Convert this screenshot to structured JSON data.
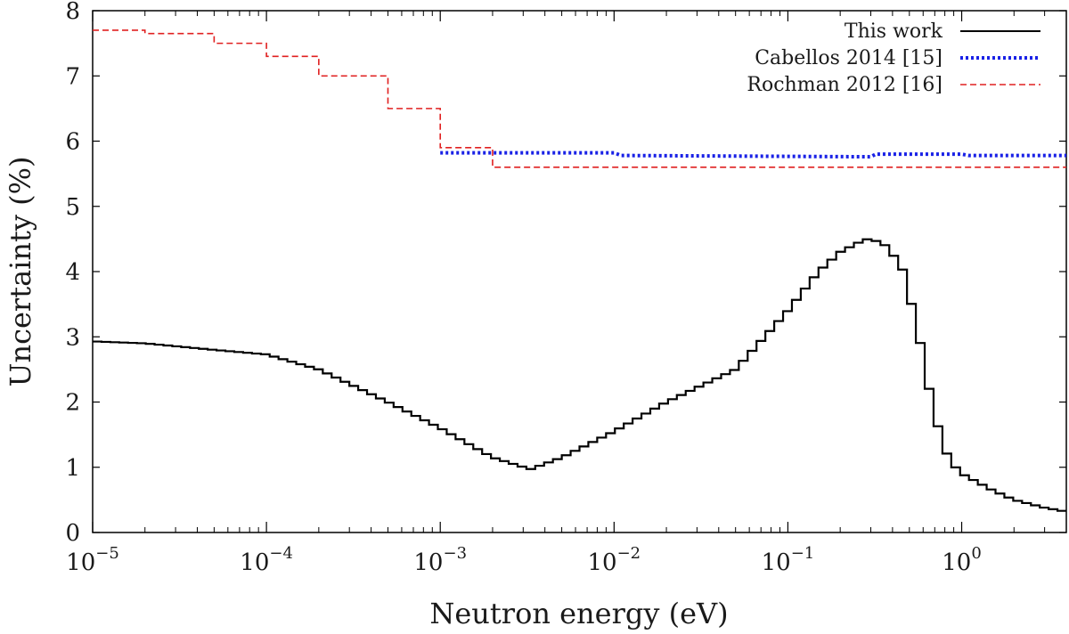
{
  "chart_data": {
    "type": "line",
    "title": "",
    "xlabel": "Neutron energy (eV)",
    "ylabel": "Uncertainty (%)",
    "xscale": "log",
    "xlim": [
      1e-05,
      4
    ],
    "ylim": [
      0,
      8
    ],
    "grid": false,
    "legend_position": "top-right",
    "yticks": [
      "0",
      "1",
      "2",
      "3",
      "4",
      "5",
      "6",
      "7",
      "8"
    ],
    "xticks": [
      {
        "base": "10",
        "exp": "−5",
        "value": 1e-05
      },
      {
        "base": "10",
        "exp": "−4",
        "value": 0.0001
      },
      {
        "base": "10",
        "exp": "−3",
        "value": 0.001
      },
      {
        "base": "10",
        "exp": "−2",
        "value": 0.01
      },
      {
        "base": "10",
        "exp": "−1",
        "value": 0.1
      },
      {
        "base": "10",
        "exp": "0",
        "value": 1
      }
    ],
    "series": [
      {
        "name": "This work",
        "color": "#000000",
        "style": "solid",
        "x": [
          1e-05,
          2e-05,
          5e-05,
          0.0001,
          0.0002,
          0.0005,
          0.001,
          0.002,
          0.0033,
          0.005,
          0.01,
          0.02,
          0.05,
          0.1,
          0.15,
          0.2,
          0.28,
          0.35,
          0.45,
          0.55,
          0.65,
          0.75,
          0.85,
          1.0,
          1.5,
          2.0,
          3.0,
          4.0
        ],
        "y": [
          2.93,
          2.9,
          2.8,
          2.73,
          2.5,
          2.0,
          1.6,
          1.15,
          0.97,
          1.15,
          1.55,
          2.0,
          2.5,
          3.4,
          4.0,
          4.3,
          4.5,
          4.45,
          4.1,
          3.2,
          2.2,
          1.5,
          1.1,
          0.9,
          0.65,
          0.5,
          0.38,
          0.32
        ]
      },
      {
        "name": "Cabellos 2014 [15]",
        "color": "#1a22e6",
        "style": "dotted",
        "x": [
          0.001,
          0.01,
          0.011,
          0.3,
          0.32,
          1.0,
          1.1,
          4.0
        ],
        "y": [
          5.82,
          5.82,
          5.78,
          5.76,
          5.8,
          5.8,
          5.78,
          5.78
        ]
      },
      {
        "name": "Rochman 2012 [16]",
        "color": "#e02020",
        "style": "dashed",
        "steps": [
          {
            "x0": 1e-05,
            "x1": 2e-05,
            "y": 7.7
          },
          {
            "x0": 2e-05,
            "x1": 5e-05,
            "y": 7.65
          },
          {
            "x0": 5e-05,
            "x1": 0.0001,
            "y": 7.5
          },
          {
            "x0": 0.0001,
            "x1": 0.0002,
            "y": 7.3
          },
          {
            "x0": 0.0002,
            "x1": 0.0005,
            "y": 7.0
          },
          {
            "x0": 0.0005,
            "x1": 0.001,
            "y": 6.5
          },
          {
            "x0": 0.001,
            "x1": 0.002,
            "y": 5.9
          },
          {
            "x0": 0.002,
            "x1": 4.0,
            "y": 5.6
          }
        ]
      }
    ]
  }
}
